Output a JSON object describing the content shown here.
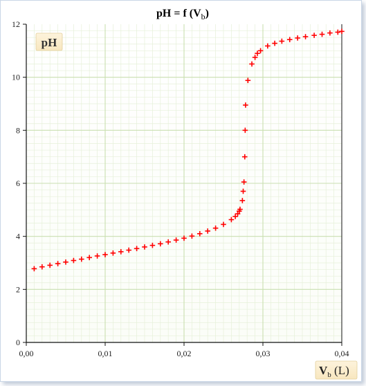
{
  "chart_data": {
    "type": "scatter",
    "title": "pH = f (V",
    "title_sub": "b",
    "title_end": ")",
    "ylabel": "pH",
    "xlabel_main": "V",
    "xlabel_sub": "b",
    "xlabel_unit": " (L)",
    "xlim": [
      0,
      0.04
    ],
    "ylim": [
      0,
      12
    ],
    "x_ticks": [
      "0,00",
      "0,01",
      "0,02",
      "0,03",
      "0,04"
    ],
    "y_ticks": [
      "0",
      "2",
      "4",
      "6",
      "8",
      "10",
      "12"
    ],
    "grid": true,
    "marker": "+",
    "color": "#ff0000",
    "points": [
      [
        0.001,
        2.78
      ],
      [
        0.002,
        2.85
      ],
      [
        0.003,
        2.91
      ],
      [
        0.004,
        2.97
      ],
      [
        0.005,
        3.03
      ],
      [
        0.006,
        3.09
      ],
      [
        0.007,
        3.14
      ],
      [
        0.008,
        3.2
      ],
      [
        0.009,
        3.26
      ],
      [
        0.01,
        3.31
      ],
      [
        0.011,
        3.37
      ],
      [
        0.012,
        3.42
      ],
      [
        0.013,
        3.48
      ],
      [
        0.014,
        3.54
      ],
      [
        0.015,
        3.6
      ],
      [
        0.016,
        3.66
      ],
      [
        0.017,
        3.72
      ],
      [
        0.018,
        3.79
      ],
      [
        0.019,
        3.86
      ],
      [
        0.02,
        3.93
      ],
      [
        0.021,
        4.01
      ],
      [
        0.022,
        4.1
      ],
      [
        0.023,
        4.2
      ],
      [
        0.024,
        4.31
      ],
      [
        0.025,
        4.45
      ],
      [
        0.026,
        4.63
      ],
      [
        0.0265,
        4.75
      ],
      [
        0.0268,
        4.85
      ],
      [
        0.027,
        4.95
      ],
      [
        0.0271,
        5.02
      ],
      [
        0.0274,
        5.35
      ],
      [
        0.0275,
        5.7
      ],
      [
        0.0276,
        6.05
      ],
      [
        0.0277,
        7.0
      ],
      [
        0.02775,
        8.0
      ],
      [
        0.0278,
        8.95
      ],
      [
        0.0281,
        9.88
      ],
      [
        0.0286,
        10.5
      ],
      [
        0.029,
        10.75
      ],
      [
        0.0293,
        10.9
      ],
      [
        0.0297,
        11.0
      ],
      [
        0.0306,
        11.18
      ],
      [
        0.0315,
        11.28
      ],
      [
        0.0324,
        11.36
      ],
      [
        0.0334,
        11.42
      ],
      [
        0.0344,
        11.48
      ],
      [
        0.0354,
        11.53
      ],
      [
        0.0365,
        11.58
      ],
      [
        0.0375,
        11.62
      ],
      [
        0.0385,
        11.67
      ],
      [
        0.0395,
        11.7
      ],
      [
        0.04,
        11.73
      ]
    ]
  }
}
